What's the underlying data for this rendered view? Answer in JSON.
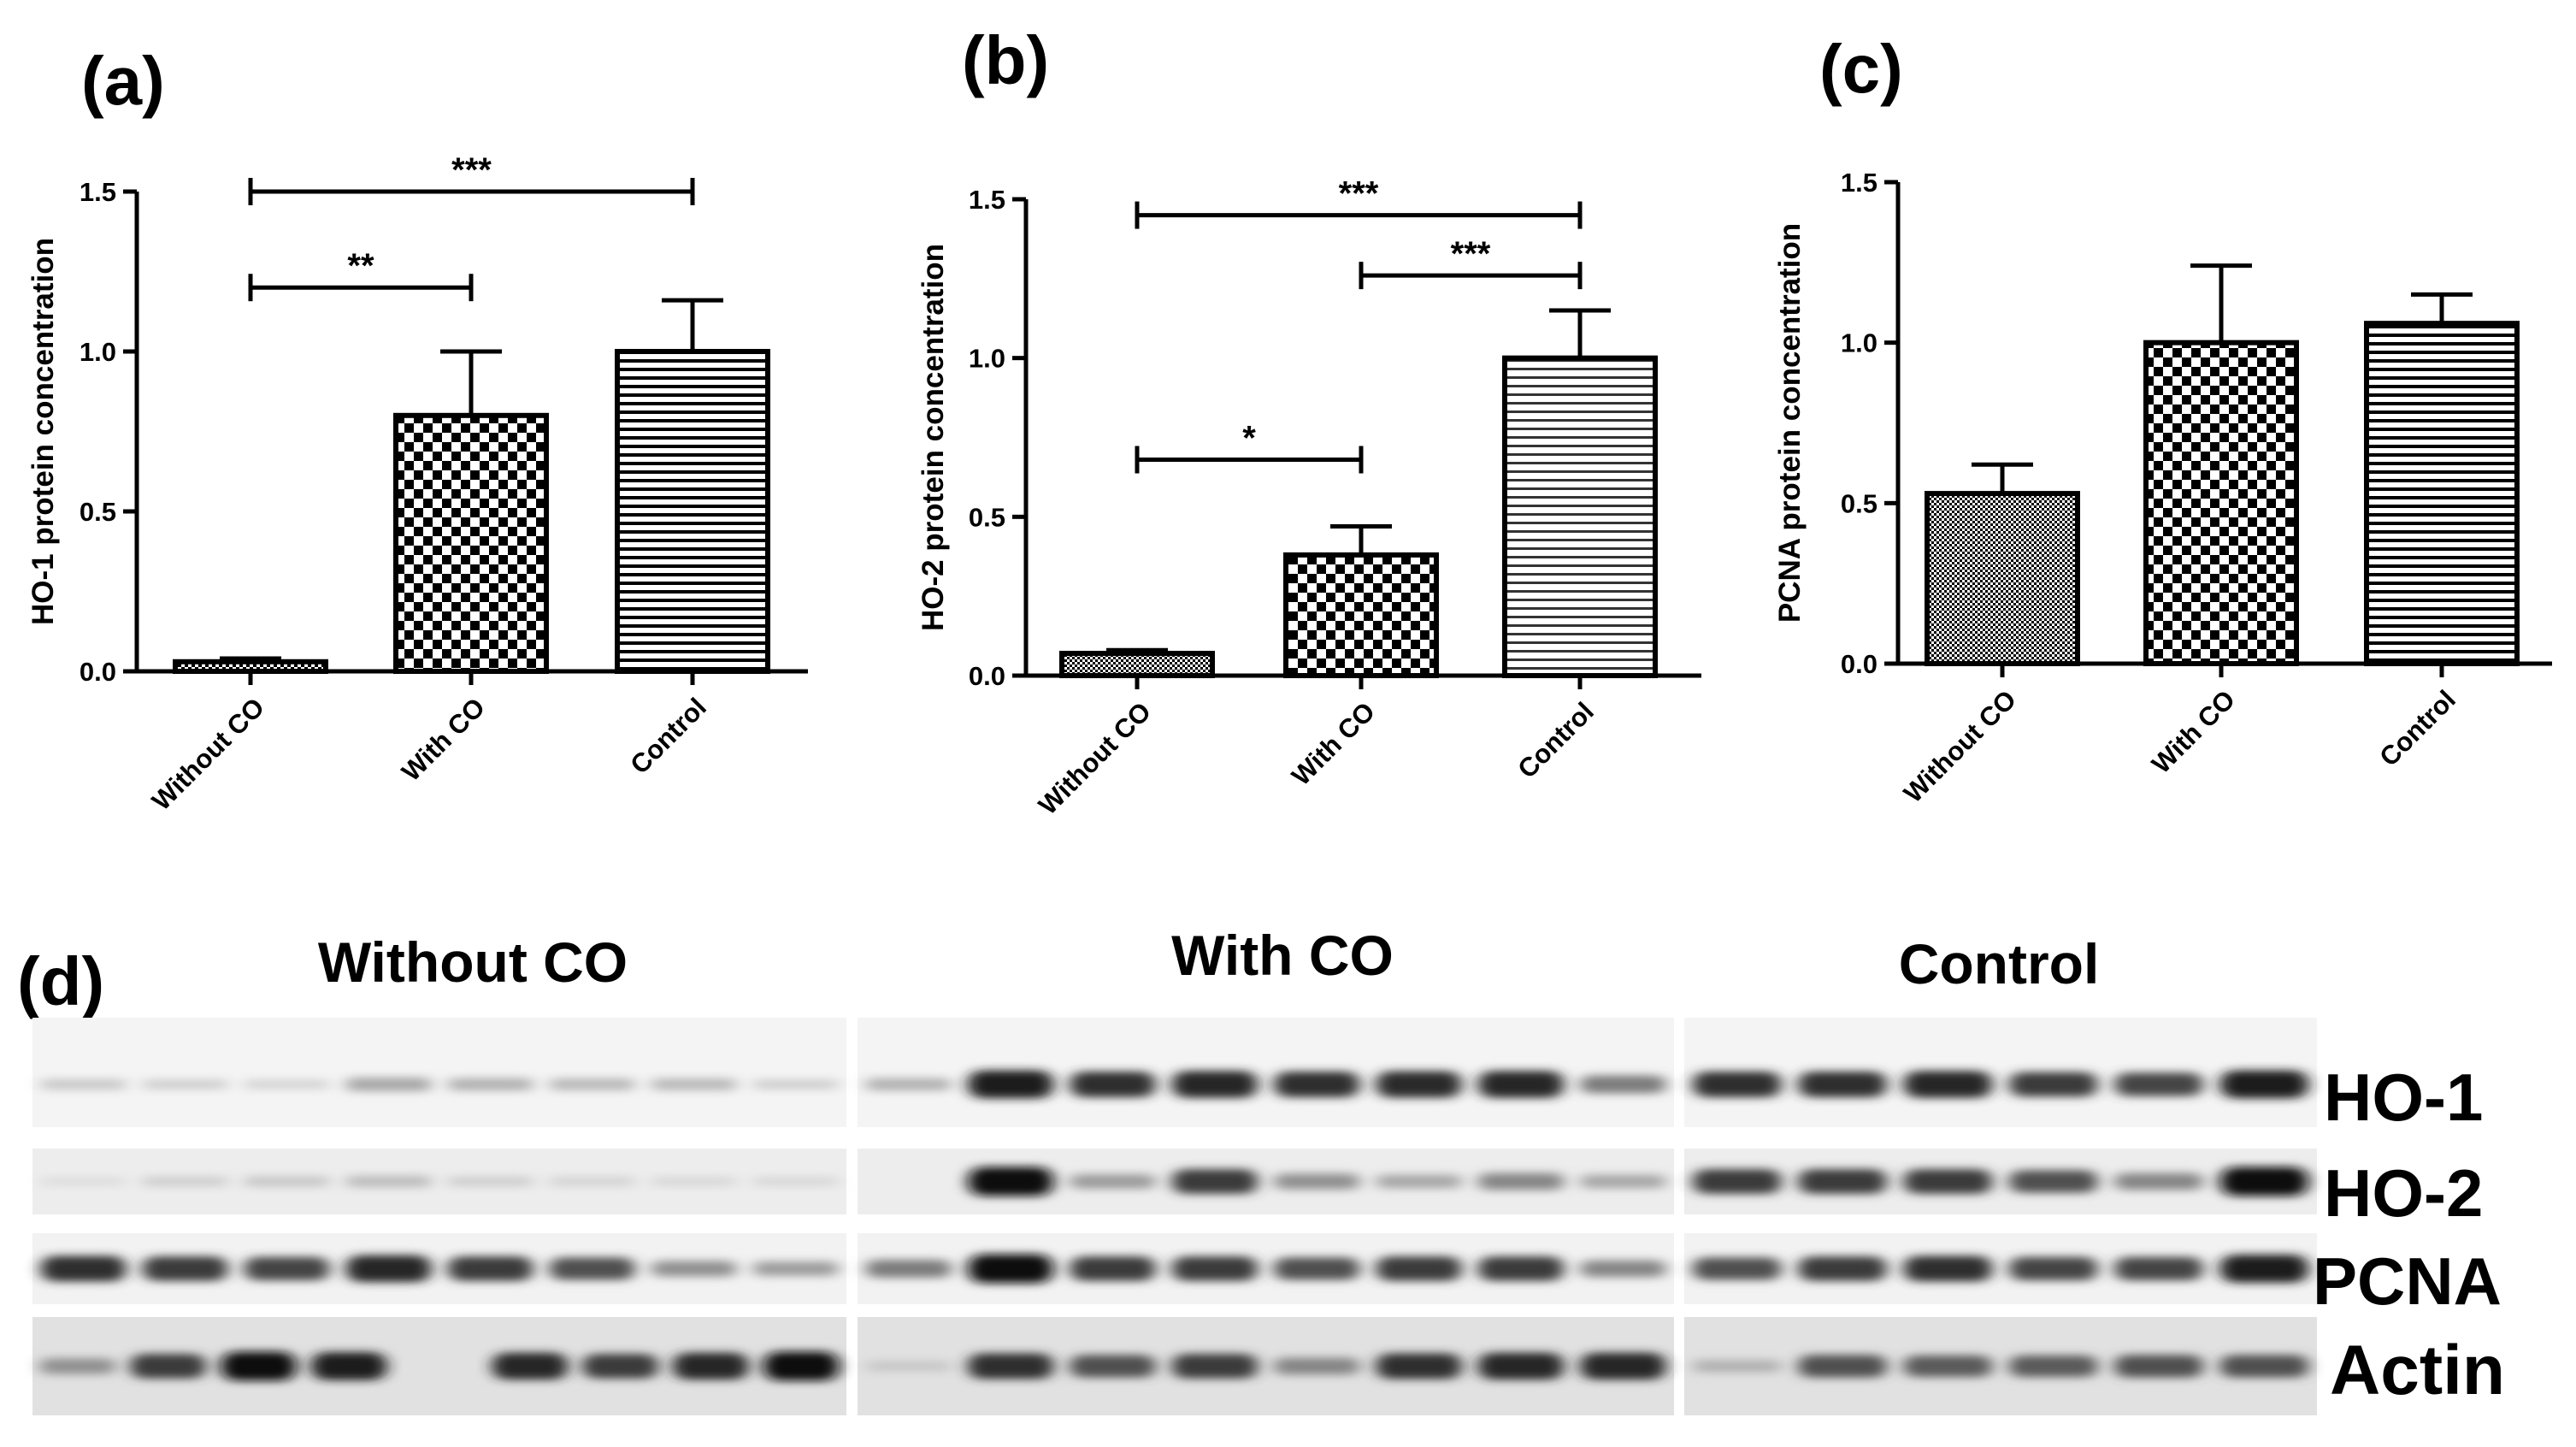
{
  "panels": [
    "(a)",
    "(b)",
    "(c)",
    "(d)"
  ],
  "chart_data": [
    {
      "type": "bar",
      "title": "",
      "xlabel": "",
      "ylabel": "HO-1 protein concentration",
      "ylim": [
        0,
        1.5
      ],
      "yticks": [
        "0.0",
        "0.5",
        "1.0",
        "1.5"
      ],
      "categories": [
        "Without CO",
        "With CO",
        "Control"
      ],
      "values": [
        0.03,
        0.8,
        1.0
      ],
      "errors": [
        0.01,
        0.2,
        0.16
      ],
      "significance": [
        {
          "from": 0,
          "to": 1,
          "label": "**",
          "y": 1.2
        },
        {
          "from": 0,
          "to": 2,
          "label": "***",
          "y": 1.5
        }
      ]
    },
    {
      "type": "bar",
      "title": "",
      "xlabel": "",
      "ylabel": "HO-2 protein concentration",
      "ylim": [
        0,
        1.5
      ],
      "yticks": [
        "0.0",
        "0.5",
        "1.0",
        "1.5"
      ],
      "categories": [
        "Without CO",
        "With CO",
        "Control"
      ],
      "values": [
        0.07,
        0.38,
        1.0
      ],
      "errors": [
        0.01,
        0.09,
        0.15
      ],
      "significance": [
        {
          "from": 0,
          "to": 1,
          "label": "*",
          "y": 0.68
        },
        {
          "from": 1,
          "to": 2,
          "label": "***",
          "y": 1.26
        },
        {
          "from": 0,
          "to": 2,
          "label": "***",
          "y": 1.45
        }
      ]
    },
    {
      "type": "bar",
      "title": "",
      "xlabel": "",
      "ylabel": "PCNA protein concentration",
      "ylim": [
        0,
        1.5
      ],
      "yticks": [
        "0.0",
        "0.5",
        "1.0",
        "1.5"
      ],
      "categories": [
        "Without CO",
        "With CO",
        "Control"
      ],
      "values": [
        0.53,
        1.0,
        1.06
      ],
      "errors": [
        0.09,
        0.24,
        0.09
      ],
      "significance": []
    }
  ],
  "blot": {
    "groups": [
      "Without CO",
      "With CO",
      "Control"
    ],
    "rows": [
      "HO-1",
      "HO-2",
      "PCNA",
      "Actin"
    ],
    "intensity": [
      [
        [
          0.15,
          0.12,
          0.1,
          0.3,
          0.25,
          0.22,
          0.22,
          0.12
        ],
        [
          0.25,
          0.95,
          0.85,
          0.9,
          0.85,
          0.88,
          0.9,
          0.5
        ],
        [
          0.85,
          0.85,
          0.9,
          0.8,
          0.75,
          0.95
        ]
      ],
      [
        [
          0.05,
          0.12,
          0.15,
          0.2,
          0.12,
          0.1,
          0.08,
          0.08
        ],
        [
          0.0,
          1.0,
          0.35,
          0.8,
          0.4,
          0.3,
          0.45,
          0.3
        ],
        [
          0.8,
          0.8,
          0.8,
          0.7,
          0.45,
          1.0
        ]
      ],
      [
        [
          0.85,
          0.8,
          0.75,
          0.9,
          0.8,
          0.7,
          0.4,
          0.35
        ],
        [
          0.5,
          1.0,
          0.8,
          0.8,
          0.7,
          0.8,
          0.8,
          0.45
        ],
        [
          0.7,
          0.8,
          0.85,
          0.75,
          0.75,
          0.95
        ]
      ],
      [
        [
          0.4,
          0.8,
          1.0,
          0.95,
          0.0,
          0.9,
          0.8,
          0.9,
          1.0
        ],
        [
          0.15,
          0.85,
          0.7,
          0.8,
          0.45,
          0.85,
          0.9,
          0.9
        ],
        [
          0.25,
          0.7,
          0.65,
          0.65,
          0.7,
          0.7
        ]
      ]
    ]
  }
}
